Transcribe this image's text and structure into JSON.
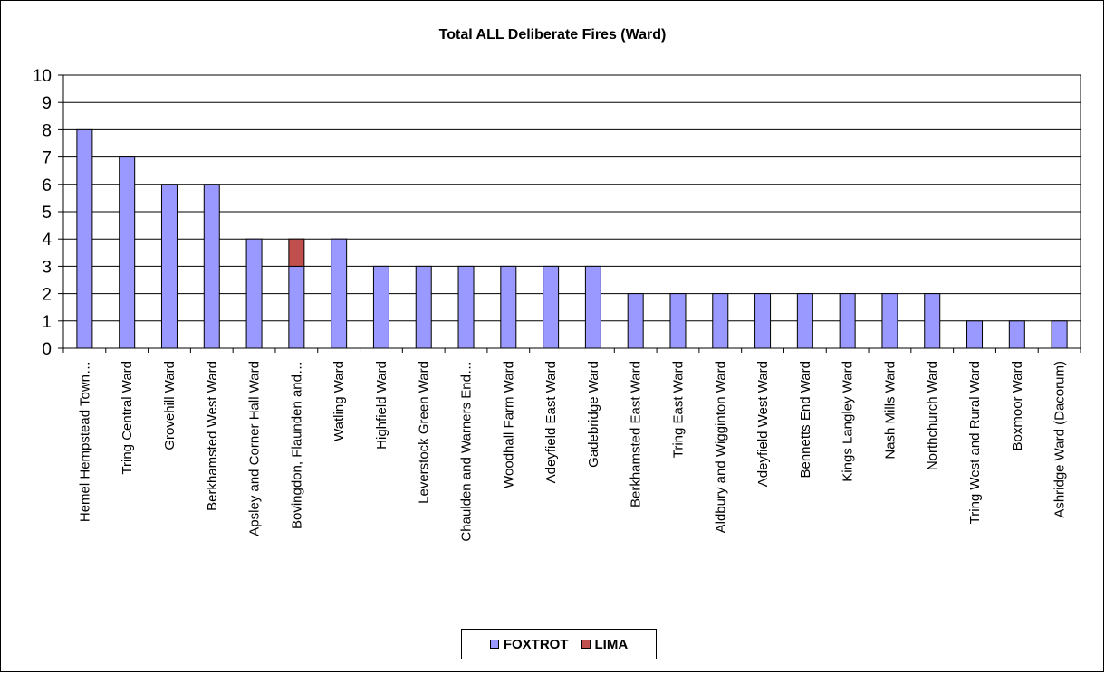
{
  "chart_data": {
    "type": "bar",
    "stacked": true,
    "title": "Total ALL Deliberate Fires (Ward)",
    "xlabel": "",
    "ylabel": "",
    "ylim": [
      0,
      10
    ],
    "yticks": [
      0,
      1,
      2,
      3,
      4,
      5,
      6,
      7,
      8,
      9,
      10
    ],
    "grid": true,
    "legend_position": "bottom",
    "categories": [
      "Hemel Hempstead Town…",
      "Tring Central Ward",
      "Grovehill Ward",
      "Berkhamsted West Ward",
      "Apsley and Corner Hall Ward",
      "Bovingdon, Flaunden and…",
      "Watling Ward",
      "Highfield Ward",
      "Leverstock Green Ward",
      "Chaulden and Warners End…",
      "Woodhall Farm Ward",
      "Adeyfield East Ward",
      "Gadebridge Ward",
      "Berkhamsted East Ward",
      "Tring East Ward",
      "Aldbury and Wigginton Ward",
      "Adeyfield West Ward",
      "Bennetts End Ward",
      "Kings Langley Ward",
      "Nash Mills Ward",
      "Northchurch Ward",
      "Tring West and Rural Ward",
      "Boxmoor Ward",
      "Ashridge Ward (Dacorum)"
    ],
    "series": [
      {
        "name": "FOXTROT",
        "color": "#9999ff",
        "values": [
          8,
          7,
          6,
          6,
          4,
          3,
          4,
          3,
          3,
          3,
          3,
          3,
          3,
          2,
          2,
          2,
          2,
          2,
          2,
          2,
          2,
          1,
          1,
          1
        ]
      },
      {
        "name": "LIMA",
        "color": "#c0504d",
        "values": [
          0,
          0,
          0,
          0,
          0,
          1,
          0,
          0,
          0,
          0,
          0,
          0,
          0,
          0,
          0,
          0,
          0,
          0,
          0,
          0,
          0,
          0,
          0,
          0
        ]
      }
    ]
  }
}
